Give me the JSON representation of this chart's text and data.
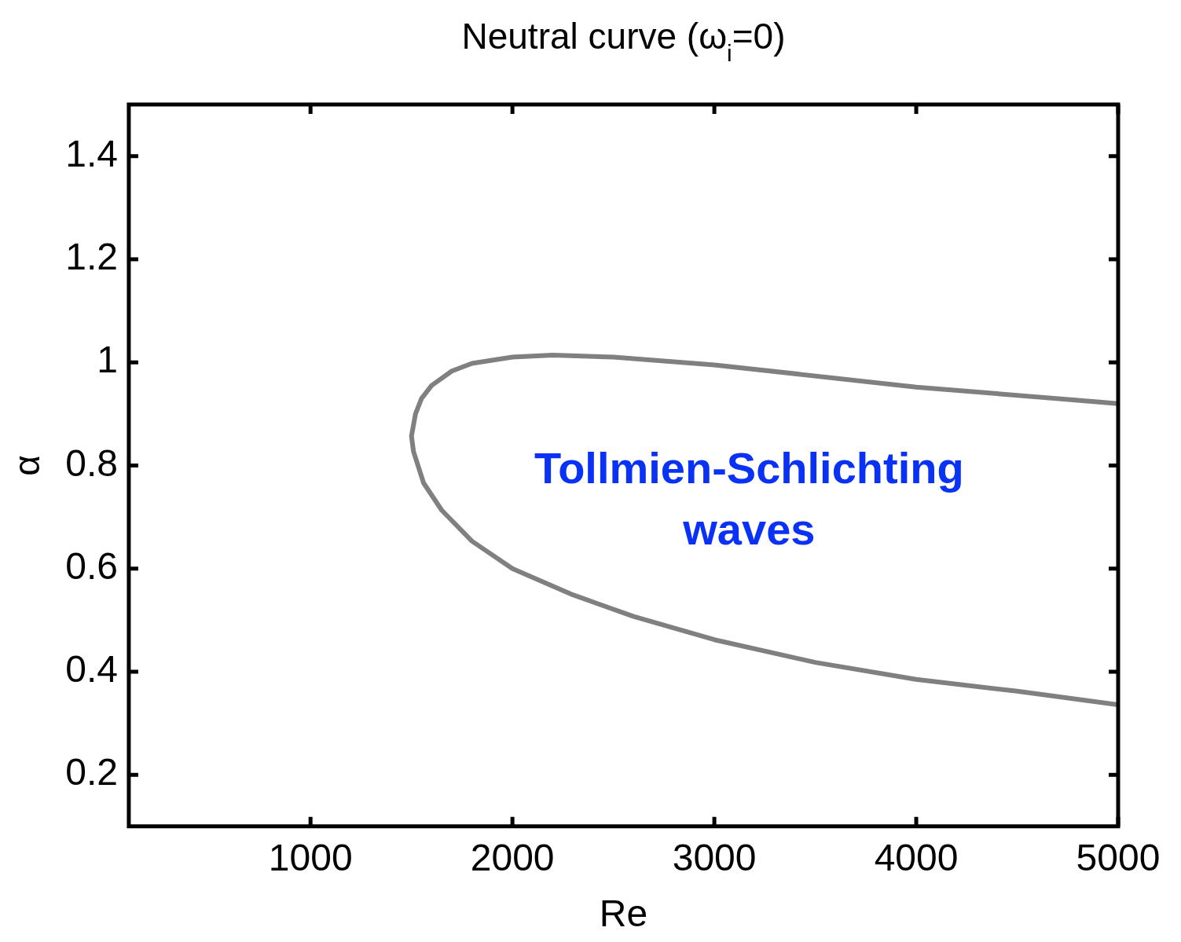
{
  "chart_data": {
    "type": "line",
    "title": "Neutral curve (ω$_{i}$=0)",
    "xlabel": "Re",
    "ylabel": "α",
    "xlim": [
      100,
      5000
    ],
    "ylim": [
      0.1,
      1.5
    ],
    "xticks": [
      1000,
      2000,
      3000,
      4000,
      5000
    ],
    "yticks": [
      0.2,
      0.4,
      0.6,
      0.8,
      1,
      1.2,
      1.4
    ],
    "grid": false,
    "legend": false,
    "marker": "none",
    "line_style": "solid",
    "series": [
      {
        "color": "#808080",
        "x": [
          5000,
          4000,
          3000,
          2500,
          2200,
          2000,
          1800,
          1700,
          1600,
          1550,
          1520,
          1500,
          1510,
          1560,
          1650,
          1800,
          2000,
          2300,
          2600,
          3000,
          3500,
          4000,
          4500,
          5000
        ],
        "values": [
          0.92,
          0.952,
          0.995,
          1.01,
          1.014,
          1.01,
          0.998,
          0.983,
          0.955,
          0.93,
          0.9,
          0.857,
          0.827,
          0.766,
          0.713,
          0.653,
          0.6,
          0.549,
          0.507,
          0.462,
          0.418,
          0.385,
          0.362,
          0.336
        ]
      }
    ],
    "annotations": [
      "Tollmien-Schlichting waves"
    ]
  }
}
